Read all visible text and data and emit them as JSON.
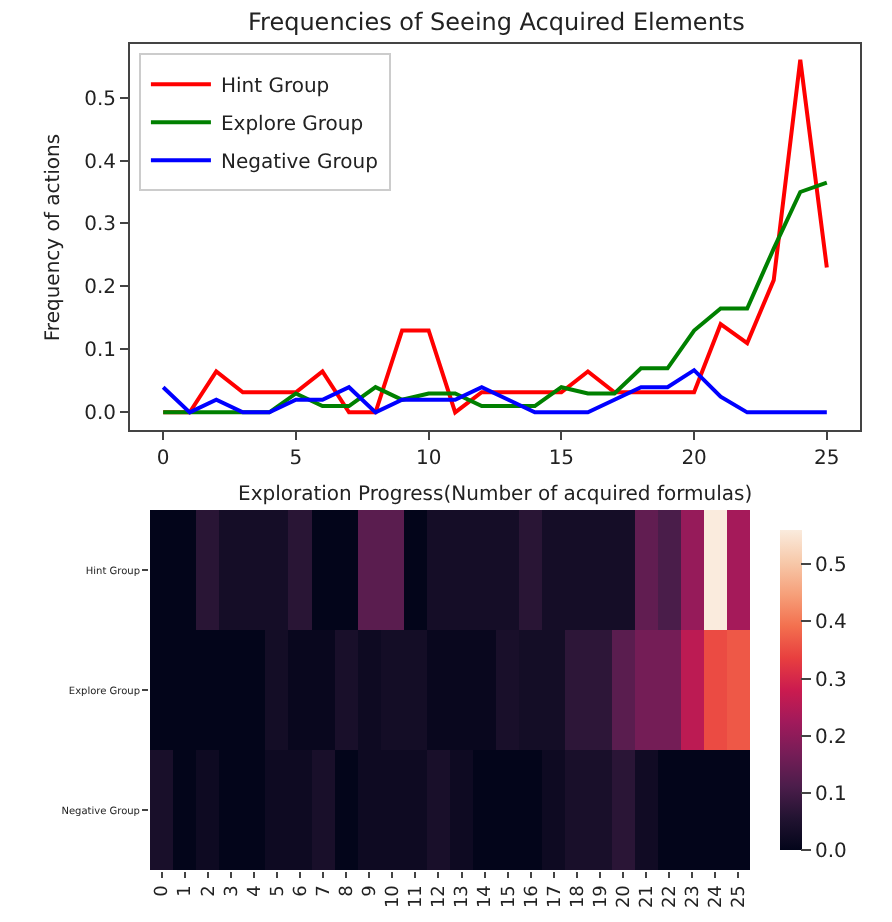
{
  "chart_data": [
    {
      "type": "line",
      "title": "Frequencies of Seeing Acquired Elements",
      "xlabel": "Exploration Progress(Number of acquired formulas)",
      "ylabel": "Frequency of actions",
      "x": [
        0,
        1,
        2,
        3,
        4,
        5,
        6,
        7,
        8,
        9,
        10,
        11,
        12,
        13,
        14,
        15,
        16,
        17,
        18,
        19,
        20,
        21,
        22,
        23,
        24,
        25
      ],
      "series": [
        {
          "name": "Hint Group",
          "color": "#ff0000",
          "values": [
            0,
            0,
            0.065,
            0.032,
            0.032,
            0.032,
            0.065,
            0,
            0,
            0.13,
            0.13,
            0,
            0.032,
            0.032,
            0.032,
            0.032,
            0.065,
            0.032,
            0.032,
            0.032,
            0.032,
            0.14,
            0.11,
            0.21,
            0.56,
            0.23
          ]
        },
        {
          "name": "Explore Group",
          "color": "#008000",
          "values": [
            0,
            0,
            0,
            0,
            0,
            0.03,
            0.01,
            0.01,
            0.04,
            0.02,
            0.03,
            0.03,
            0.01,
            0.01,
            0.01,
            0.04,
            0.03,
            0.03,
            0.07,
            0.07,
            0.13,
            0.165,
            0.165,
            0.26,
            0.35,
            0.365
          ]
        },
        {
          "name": "Negative Group",
          "color": "#0000ff",
          "values": [
            0.04,
            0,
            0.02,
            0,
            0,
            0.02,
            0.02,
            0.04,
            0,
            0.02,
            0.02,
            0.02,
            0.04,
            0.02,
            0,
            0,
            0,
            0.02,
            0.04,
            0.04,
            0.067,
            0.025,
            0,
            0,
            0,
            0
          ]
        }
      ],
      "xlim": [
        -1.25,
        26.25
      ],
      "ylim": [
        -0.028,
        0.585
      ],
      "xticks": [
        0,
        5,
        10,
        15,
        20,
        25
      ],
      "yticks": [
        {
          "value": 0,
          "label": "0.0"
        },
        0.1,
        0.2,
        0.3,
        0.4,
        0.5
      ],
      "legend": "top left",
      "marker": "none",
      "line_style": "solid"
    },
    {
      "type": "heatmap",
      "categories": [
        "0",
        "1",
        "2",
        "3",
        "4",
        "5",
        "6",
        "7",
        "8",
        "9",
        "10",
        "11",
        "12",
        "13",
        "14",
        "15",
        "16",
        "17",
        "18",
        "19",
        "20",
        "21",
        "22",
        "23",
        "24",
        "25"
      ],
      "y_categories": [
        "Hint Group",
        "Explore Group",
        "Negative Group"
      ],
      "cells": [
        [
          0,
          0,
          0.065,
          0.032,
          0.032,
          0.032,
          0.065,
          0,
          0,
          0.13,
          0.13,
          0,
          0.032,
          0.032,
          0.032,
          0.032,
          0.065,
          0.032,
          0.032,
          0.032,
          0.032,
          0.14,
          0.11,
          0.21,
          0.56,
          0.23
        ],
        [
          0,
          0,
          0,
          0,
          0,
          0.03,
          0.01,
          0.01,
          0.04,
          0.02,
          0.03,
          0.03,
          0.01,
          0.01,
          0.01,
          0.04,
          0.03,
          0.03,
          0.07,
          0.07,
          0.13,
          0.165,
          0.165,
          0.26,
          0.35,
          0.365
        ],
        [
          0.04,
          0,
          0.02,
          0,
          0,
          0.02,
          0.02,
          0.04,
          0,
          0.02,
          0.02,
          0.02,
          0.04,
          0.02,
          0,
          0,
          0,
          0.02,
          0.04,
          0.04,
          0.067,
          0.025,
          0,
          0,
          0,
          0
        ]
      ],
      "clim": [
        0,
        0.56
      ],
      "cticks": [
        {
          "value": 0,
          "label": "0.0"
        },
        0.1,
        0.2,
        0.3,
        0.4,
        0.5
      ]
    }
  ]
}
